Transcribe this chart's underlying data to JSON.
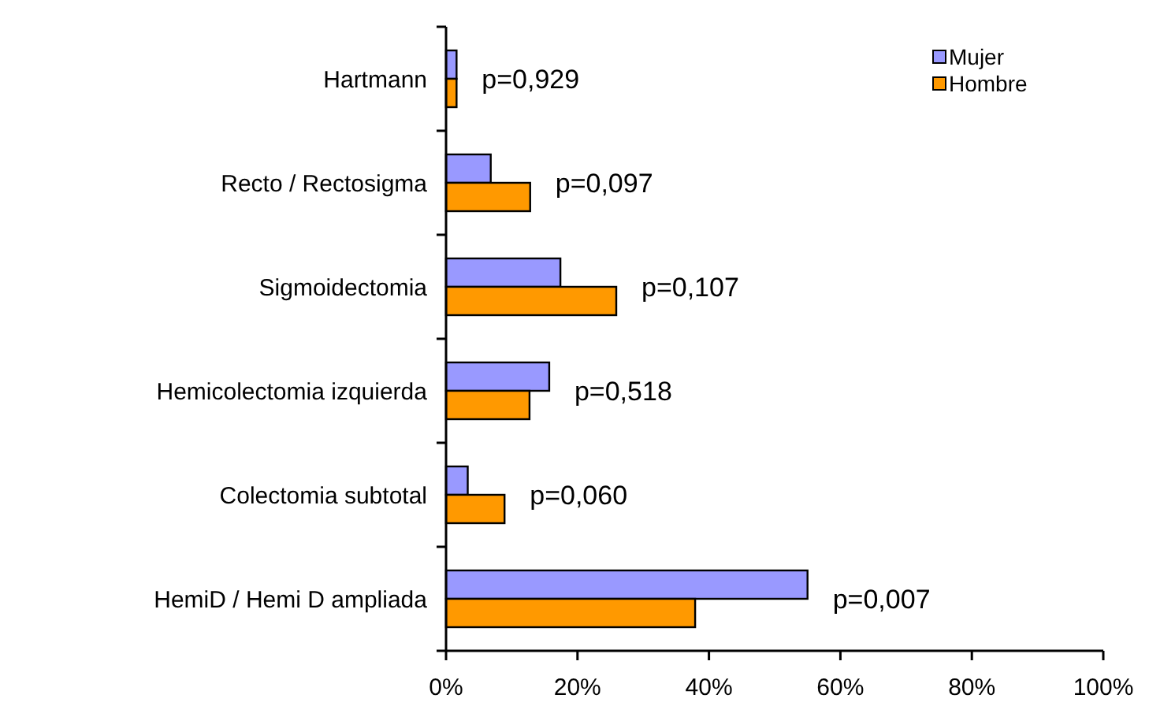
{
  "chart_data": {
    "type": "bar",
    "orientation": "horizontal",
    "categories": [
      "Hartmann",
      "Recto / Rectosigma",
      "Sigmoidectomia",
      "Hemicolectomia izquierda",
      "Colectomia subtotal",
      "HemiD / Hemi D ampliada"
    ],
    "series": [
      {
        "name": "Mujer",
        "color": "#9999ff",
        "values": [
          1.6,
          6.8,
          17.4,
          15.7,
          3.3,
          55.0
        ]
      },
      {
        "name": "Hombre",
        "color": "#ff9900",
        "values": [
          1.6,
          12.8,
          25.9,
          12.7,
          8.9,
          37.9
        ]
      }
    ],
    "xlim": [
      0,
      100
    ],
    "xticks": [
      {
        "value": 0,
        "label": "0%"
      },
      {
        "value": 20,
        "label": "20%"
      },
      {
        "value": 40,
        "label": "40%"
      },
      {
        "value": 60,
        "label": "60%"
      },
      {
        "value": 80,
        "label": "80%"
      },
      {
        "value": 100,
        "label": "100%"
      }
    ],
    "annotations": [
      "p=0,929",
      "p=0,097",
      "p=0,107",
      "p=0,518",
      "p=0,060",
      "p=0,007"
    ],
    "grid": false,
    "legend": "top right"
  }
}
